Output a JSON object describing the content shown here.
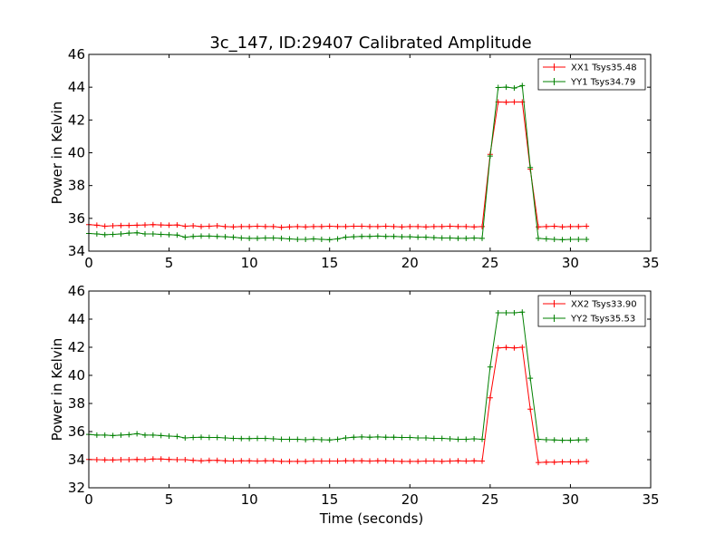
{
  "chart_data": [
    {
      "type": "line",
      "title": "3c_147, ID:29407 Calibrated Amplitude",
      "xlabel": "",
      "ylabel": "Power in Kelvin",
      "xlim": [
        0,
        35
      ],
      "ylim": [
        34,
        46
      ],
      "xticks": [
        "0",
        "5",
        "10",
        "15",
        "20",
        "25",
        "30",
        "35"
      ],
      "yticks": [
        "34",
        "36",
        "38",
        "40",
        "42",
        "44",
        "46"
      ],
      "grid": false,
      "legend_position": "top-right",
      "x": [
        0.0,
        0.5,
        1.0,
        1.5,
        2.0,
        2.5,
        3.0,
        3.5,
        4.0,
        4.5,
        5.0,
        5.5,
        6.0,
        6.5,
        7.0,
        7.5,
        8.0,
        8.5,
        9.0,
        9.5,
        10.0,
        10.5,
        11.0,
        11.5,
        12.0,
        12.5,
        13.0,
        13.5,
        14.0,
        14.5,
        15.0,
        15.5,
        16.0,
        16.5,
        17.0,
        17.5,
        18.0,
        18.5,
        19.0,
        19.5,
        20.0,
        20.5,
        21.0,
        21.5,
        22.0,
        22.5,
        23.0,
        23.5,
        24.0,
        24.5,
        25.0,
        25.5,
        26.0,
        26.5,
        27.0,
        27.5,
        28.0,
        28.5,
        29.0,
        29.5,
        30.0,
        30.5,
        31.0
      ],
      "series": [
        {
          "name": "XX1 Tsys35.48",
          "color": "#ff0000",
          "values": [
            35.62,
            35.58,
            35.52,
            35.55,
            35.56,
            35.57,
            35.58,
            35.6,
            35.62,
            35.6,
            35.58,
            35.6,
            35.52,
            35.55,
            35.5,
            35.52,
            35.55,
            35.5,
            35.48,
            35.5,
            35.5,
            35.52,
            35.5,
            35.5,
            35.45,
            35.48,
            35.5,
            35.48,
            35.5,
            35.5,
            35.52,
            35.5,
            35.5,
            35.52,
            35.52,
            35.5,
            35.5,
            35.52,
            35.5,
            35.48,
            35.5,
            35.5,
            35.48,
            35.5,
            35.5,
            35.52,
            35.5,
            35.5,
            35.48,
            35.5,
            39.9,
            43.1,
            43.08,
            43.1,
            43.1,
            39.0,
            35.48,
            35.5,
            35.52,
            35.48,
            35.5,
            35.5,
            35.52
          ]
        },
        {
          "name": "YY1 Tsys34.79",
          "color": "#008000",
          "values": [
            35.08,
            35.05,
            35.0,
            35.02,
            35.05,
            35.1,
            35.12,
            35.05,
            35.05,
            35.02,
            35.0,
            34.98,
            34.85,
            34.9,
            34.92,
            34.92,
            34.9,
            34.88,
            34.85,
            34.8,
            34.78,
            34.78,
            34.8,
            34.8,
            34.78,
            34.75,
            34.72,
            34.72,
            34.75,
            34.72,
            34.7,
            34.75,
            34.85,
            34.88,
            34.9,
            34.9,
            34.92,
            34.9,
            34.9,
            34.88,
            34.88,
            34.85,
            34.85,
            34.82,
            34.8,
            34.8,
            34.78,
            34.78,
            34.8,
            34.78,
            39.8,
            43.98,
            44.0,
            43.95,
            44.1,
            39.1,
            34.78,
            34.75,
            34.72,
            34.7,
            34.72,
            34.72,
            34.72
          ]
        }
      ]
    },
    {
      "type": "line",
      "title": "",
      "xlabel": "Time (seconds)",
      "ylabel": "Power in Kelvin",
      "xlim": [
        0,
        35
      ],
      "ylim": [
        32,
        46
      ],
      "xticks": [
        "0",
        "5",
        "10",
        "15",
        "20",
        "25",
        "30",
        "35"
      ],
      "yticks": [
        "32",
        "34",
        "36",
        "38",
        "40",
        "42",
        "44",
        "46"
      ],
      "grid": false,
      "legend_position": "top-right",
      "x": [
        0.0,
        0.5,
        1.0,
        1.5,
        2.0,
        2.5,
        3.0,
        3.5,
        4.0,
        4.5,
        5.0,
        5.5,
        6.0,
        6.5,
        7.0,
        7.5,
        8.0,
        8.5,
        9.0,
        9.5,
        10.0,
        10.5,
        11.0,
        11.5,
        12.0,
        12.5,
        13.0,
        13.5,
        14.0,
        14.5,
        15.0,
        15.5,
        16.0,
        16.5,
        17.0,
        17.5,
        18.0,
        18.5,
        19.0,
        19.5,
        20.0,
        20.5,
        21.0,
        21.5,
        22.0,
        22.5,
        23.0,
        23.5,
        24.0,
        24.5,
        25.0,
        25.5,
        26.0,
        26.5,
        27.0,
        27.5,
        28.0,
        28.5,
        29.0,
        29.5,
        30.0,
        30.5,
        31.0
      ],
      "series": [
        {
          "name": "XX2 Tsys33.90",
          "color": "#ff0000",
          "values": [
            34.02,
            34.0,
            33.98,
            33.98,
            34.0,
            34.0,
            34.02,
            34.0,
            34.05,
            34.05,
            34.02,
            34.0,
            34.0,
            33.95,
            33.92,
            33.95,
            33.95,
            33.92,
            33.9,
            33.92,
            33.92,
            33.9,
            33.92,
            33.92,
            33.88,
            33.88,
            33.88,
            33.88,
            33.9,
            33.9,
            33.9,
            33.9,
            33.92,
            33.92,
            33.92,
            33.9,
            33.92,
            33.92,
            33.9,
            33.88,
            33.88,
            33.88,
            33.9,
            33.9,
            33.88,
            33.9,
            33.92,
            33.9,
            33.92,
            33.9,
            38.4,
            41.95,
            41.98,
            41.95,
            42.0,
            37.6,
            33.8,
            33.82,
            33.82,
            33.85,
            33.85,
            33.85,
            33.88
          ]
        },
        {
          "name": "YY2 Tsys35.53",
          "color": "#008000",
          "values": [
            35.8,
            35.75,
            35.75,
            35.72,
            35.75,
            35.78,
            35.85,
            35.75,
            35.75,
            35.72,
            35.68,
            35.65,
            35.55,
            35.58,
            35.6,
            35.58,
            35.58,
            35.55,
            35.52,
            35.5,
            35.5,
            35.52,
            35.52,
            35.48,
            35.45,
            35.45,
            35.45,
            35.42,
            35.45,
            35.42,
            35.4,
            35.45,
            35.55,
            35.6,
            35.62,
            35.6,
            35.62,
            35.6,
            35.6,
            35.58,
            35.58,
            35.55,
            35.55,
            35.52,
            35.52,
            35.48,
            35.45,
            35.45,
            35.48,
            35.45,
            40.6,
            44.45,
            44.45,
            44.45,
            44.5,
            39.8,
            35.45,
            35.42,
            35.4,
            35.38,
            35.38,
            35.4,
            35.42
          ]
        }
      ]
    }
  ]
}
